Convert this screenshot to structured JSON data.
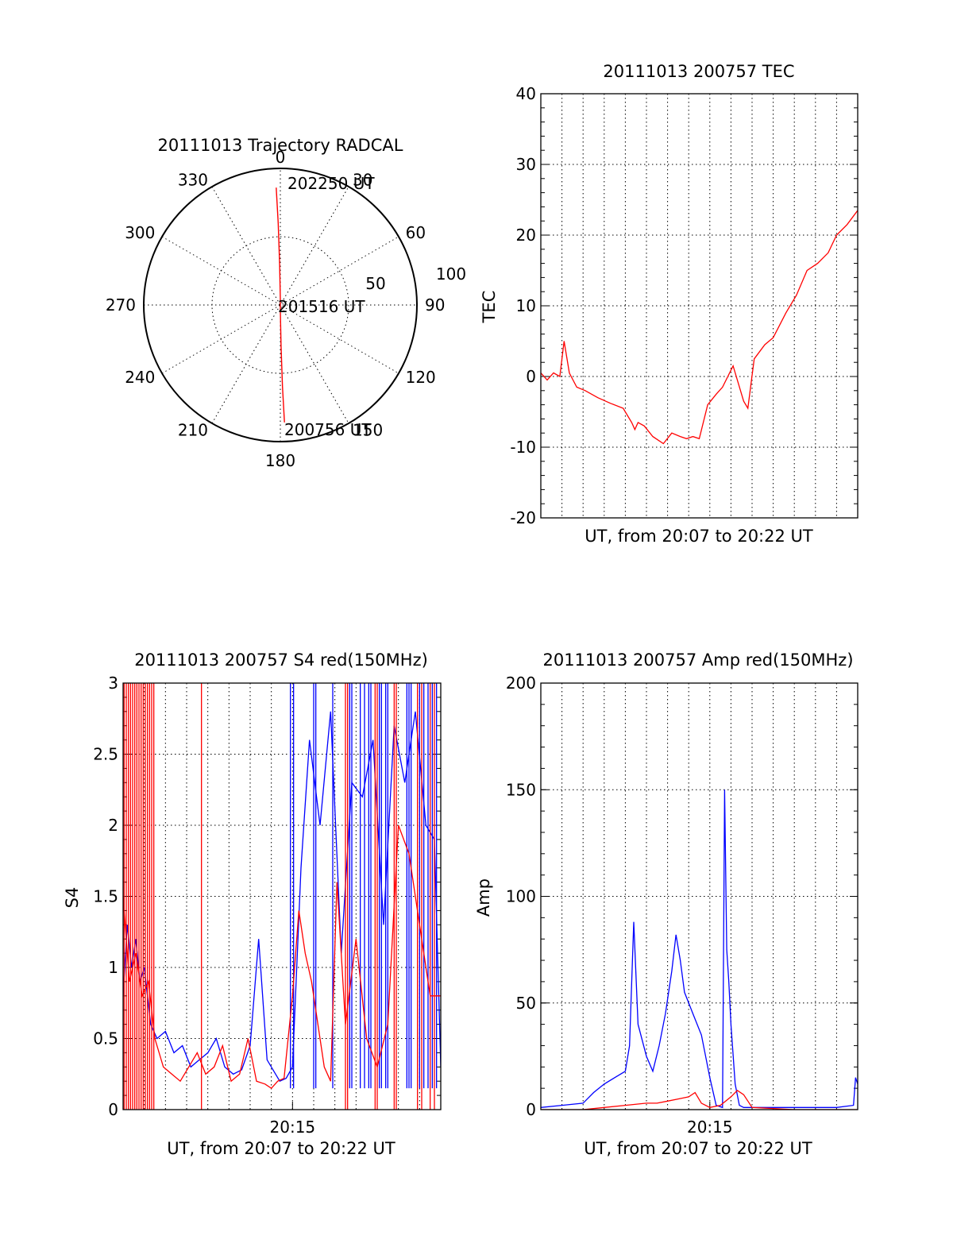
{
  "chart_data": [
    {
      "type": "polar",
      "title": "20111013 Trajectory RADCAL",
      "angle_labels": [
        "0",
        "30",
        "60",
        "90",
        "120",
        "150",
        "180",
        "210",
        "240",
        "270",
        "300",
        "330"
      ],
      "radius_labels": [
        "50",
        "100"
      ],
      "rlim": [
        0,
        100
      ],
      "grid": true,
      "annotations": [
        "202250 UT",
        "201516 UT",
        "200756 UT"
      ],
      "series": [
        {
          "color": "#ff0000",
          "points_az_deg_r": [
            [
              358,
              86
            ],
            [
              358.5,
              60
            ],
            [
              359,
              30
            ],
            [
              0,
              4
            ],
            [
              180,
              4
            ],
            [
              179,
              30
            ],
            [
              178.5,
              60
            ],
            [
              178,
              86
            ]
          ]
        }
      ]
    },
    {
      "type": "line",
      "title": "20111013 200757 TEC",
      "xlabel": "UT, from 20:07 to 20:22 UT",
      "ylabel": "TEC",
      "x_domain_minutes": [
        0,
        15
      ],
      "ylim": [
        -20,
        40
      ],
      "yticks": [
        "-20",
        "-10",
        "0",
        "10",
        "20",
        "30",
        "40"
      ],
      "grid": true,
      "series": [
        {
          "color": "#ff0000",
          "x": [
            0,
            0.3,
            0.6,
            0.9,
            1.1,
            1.35,
            1.7,
            2.1,
            2.7,
            3.3,
            3.9,
            4.3,
            4.45,
            4.6,
            4.9,
            5.3,
            5.8,
            6.2,
            6.6,
            6.9,
            7.2,
            7.5,
            7.9,
            8.3,
            8.6,
            9.1,
            9.6,
            9.8,
            10.1,
            10.6,
            11.0,
            11.6,
            12.1,
            12.6,
            13.1,
            13.6,
            14.0,
            14.5,
            15.0
          ],
          "values": [
            0.5,
            -0.5,
            0.5,
            0,
            5,
            0.5,
            -1.5,
            -2,
            -3,
            -3.8,
            -4.5,
            -6.5,
            -7.5,
            -6.5,
            -7,
            -8.5,
            -9.5,
            -8,
            -8.5,
            -8.8,
            -8.5,
            -8.8,
            -4,
            -2.5,
            -1.5,
            1.5,
            -3.5,
            -4.5,
            2.5,
            4.5,
            5.5,
            9,
            11.5,
            15,
            16,
            17.5,
            20,
            21.5,
            23.5
          ]
        }
      ]
    },
    {
      "type": "line",
      "title": "20111013 200757 S4 red(150MHz)",
      "xlabel": "UT, from 20:07 to 20:22 UT",
      "ylabel": "S4",
      "x_domain_minutes": [
        0,
        15
      ],
      "xticks": [
        {
          "at_minute": 8,
          "label": "20:15"
        }
      ],
      "ylim": [
        0,
        3
      ],
      "yticks": [
        "0",
        "0.5",
        "1",
        "1.5",
        "2",
        "2.5",
        "3"
      ],
      "grid": true,
      "series": [
        {
          "color": "#0000ff",
          "x": [
            0,
            0.2,
            0.4,
            0.6,
            0.8,
            1.0,
            1.3,
            1.6,
            2.0,
            2.4,
            2.8,
            3.2,
            3.6,
            4.0,
            4.4,
            4.8,
            5.2,
            5.6,
            6.0,
            6.4,
            6.8,
            7.2,
            7.4,
            7.7,
            8.0,
            8.4,
            8.8,
            9.3,
            9.8,
            10.3,
            10.8,
            11.3,
            11.8,
            12.3,
            12.8,
            13.3,
            13.8,
            14.3,
            14.7,
            15.0
          ],
          "values": [
            0.8,
            1.3,
            1.0,
            1.2,
            0.9,
            1.0,
            0.6,
            0.5,
            0.55,
            0.4,
            0.45,
            0.3,
            0.35,
            0.4,
            0.5,
            0.3,
            0.25,
            0.28,
            0.45,
            1.2,
            0.35,
            0.25,
            0.2,
            0.22,
            0.3,
            1.7,
            2.6,
            2.0,
            2.8,
            1.1,
            2.3,
            2.2,
            2.6,
            1.3,
            2.7,
            2.3,
            2.8,
            2.0,
            1.9,
            0.3
          ],
          "vertical_spikes_to_top_at_minute": [
            7.9,
            8.05,
            9.0,
            9.1,
            9.9,
            10.7,
            10.8,
            11.2,
            11.4,
            11.6,
            11.7,
            12.1,
            12.2,
            12.4,
            12.5,
            13.4,
            13.5,
            13.6,
            14.0,
            14.2,
            14.4,
            14.6,
            14.8
          ]
        },
        {
          "color": "#ff0000",
          "x": [
            0,
            0.3,
            0.6,
            0.9,
            1.2,
            1.5,
            1.9,
            2.3,
            2.7,
            3.1,
            3.5,
            3.9,
            4.3,
            4.7,
            5.1,
            5.5,
            5.9,
            6.3,
            6.7,
            7.0,
            7.3,
            7.6,
            8.0,
            8.3,
            8.6,
            8.9,
            9.2,
            9.5,
            9.8,
            10.1,
            10.5,
            11.0,
            11.5,
            12.0,
            12.5,
            13.0,
            13.5,
            14.0,
            14.5,
            15.0
          ],
          "values": [
            1.5,
            0.9,
            1.1,
            0.8,
            0.9,
            0.5,
            0.3,
            0.25,
            0.2,
            0.3,
            0.4,
            0.25,
            0.3,
            0.45,
            0.2,
            0.25,
            0.5,
            0.2,
            0.18,
            0.15,
            0.2,
            0.22,
            0.8,
            1.4,
            1.1,
            0.9,
            0.6,
            0.3,
            0.2,
            1.6,
            0.6,
            1.2,
            0.5,
            0.3,
            0.6,
            2.0,
            1.8,
            1.3,
            0.8,
            0.8
          ],
          "vertical_spikes_full_at_minute": [
            0.05,
            0.15,
            0.25,
            0.35,
            0.45,
            0.55,
            0.65,
            0.75,
            0.85,
            0.95,
            1.05,
            1.15,
            1.25,
            1.35,
            1.45,
            3.7,
            10.5,
            10.6,
            11.9,
            12.0,
            12.8,
            12.9,
            13.9,
            14.1,
            14.5,
            14.7
          ]
        }
      ]
    },
    {
      "type": "line",
      "title": "20111013 200757 Amp red(150MHz)",
      "xlabel": "UT, from 20:07 to 20:22 UT",
      "ylabel": "Amp",
      "x_domain_minutes": [
        0,
        15
      ],
      "xticks": [
        {
          "at_minute": 8,
          "label": "20:15"
        }
      ],
      "ylim": [
        0,
        200
      ],
      "yticks": [
        "0",
        "50",
        "100",
        "150",
        "200"
      ],
      "grid": true,
      "series": [
        {
          "color": "#0000ff",
          "x": [
            0,
            1,
            2,
            2.5,
            3,
            3.5,
            4,
            4.2,
            4.4,
            4.6,
            5,
            5.3,
            5.6,
            5.9,
            6.2,
            6.4,
            6.6,
            6.8,
            7.2,
            7.6,
            8.0,
            8.3,
            8.6,
            8.7,
            8.8,
            8.9,
            9.0,
            9.2,
            9.4,
            9.6,
            10,
            11,
            12,
            13,
            14,
            14.8,
            14.9,
            15
          ],
          "values": [
            1,
            2,
            3,
            8,
            12,
            15,
            18,
            30,
            88,
            40,
            25,
            18,
            30,
            45,
            65,
            82,
            70,
            55,
            45,
            35,
            15,
            2,
            1,
            150,
            75,
            60,
            40,
            12,
            2,
            1,
            1,
            1,
            1,
            1,
            1,
            2,
            15,
            12
          ]
        },
        {
          "color": "#ff0000",
          "x": [
            0,
            2,
            3,
            4,
            5,
            5.5,
            6,
            6.5,
            7,
            7.3,
            7.6,
            8,
            8.5,
            9,
            9.3,
            9.6,
            10,
            12,
            15
          ],
          "values": [
            0,
            0,
            1,
            2,
            3,
            3,
            4,
            5,
            6,
            8,
            3,
            1,
            2,
            6,
            9,
            7,
            1,
            0,
            0
          ]
        }
      ]
    }
  ]
}
